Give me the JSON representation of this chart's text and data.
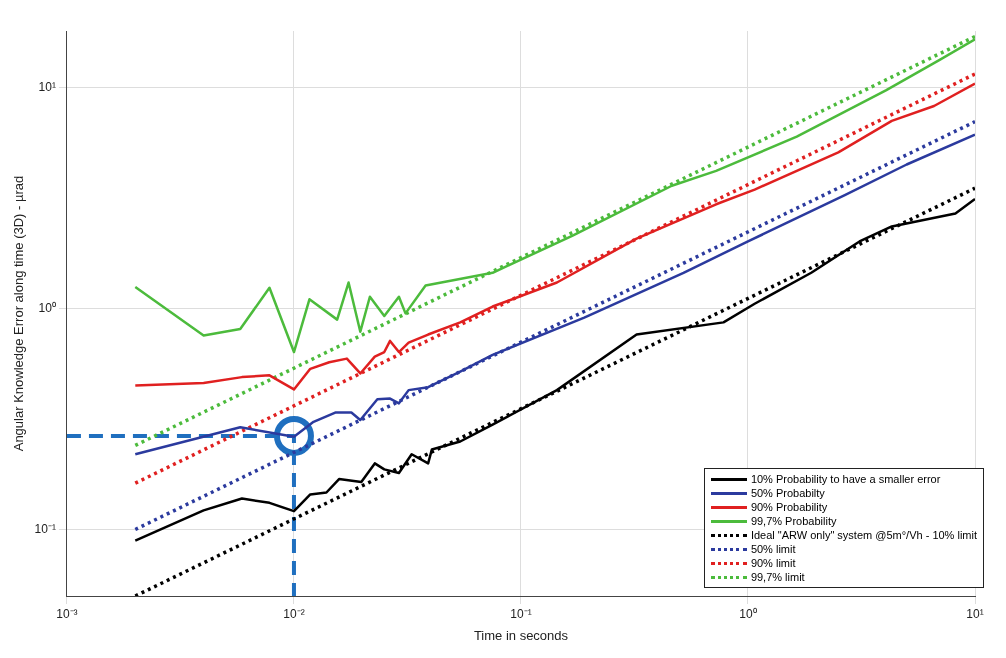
{
  "chart_data": {
    "type": "line",
    "xlabel": "Time in seconds",
    "ylabel": "Angular Knowledge Error along time (3D) - µrad",
    "log": "xy",
    "grid": true,
    "legend": "bottom right",
    "marker": "none",
    "xlim": [
      0.001,
      10
    ],
    "xticks": [
      {
        "value": 0.001,
        "label": "10⁻³"
      },
      {
        "value": 0.01,
        "label": "10⁻²"
      },
      {
        "value": 0.1,
        "label": "10⁻¹"
      },
      {
        "value": 1,
        "label": "10⁰"
      },
      {
        "value": 10,
        "label": "10¹"
      }
    ],
    "ylim": [
      0.05,
      18
    ],
    "yticks": [
      {
        "value": 0.1,
        "label": "10⁻¹"
      },
      {
        "value": 1,
        "label": "10⁰"
      },
      {
        "value": 10,
        "label": "10¹"
      }
    ],
    "series": [
      {
        "name": "10% Probability to have a smaller error",
        "color": "#000000",
        "line_style": "solid",
        "x": [
          0.002,
          0.004,
          0.0059,
          0.0078,
          0.01,
          0.0118,
          0.0139,
          0.0158,
          0.0198,
          0.0227,
          0.025,
          0.029,
          0.033,
          0.039,
          0.0405,
          0.054,
          0.075,
          0.144,
          0.323,
          0.78,
          1.07,
          1.9,
          3.1,
          4.3,
          8.2,
          10
        ],
        "values": [
          0.089,
          0.122,
          0.138,
          0.132,
          0.121,
          0.144,
          0.147,
          0.169,
          0.164,
          0.199,
          0.187,
          0.18,
          0.219,
          0.199,
          0.23,
          0.25,
          0.298,
          0.427,
          0.762,
          0.865,
          1.05,
          1.45,
          2.01,
          2.35,
          2.69,
          3.13
        ]
      },
      {
        "name": "50% Probabilty",
        "color": "#2b3a9e",
        "line_style": "solid",
        "x": [
          0.002,
          0.0058,
          0.01,
          0.0122,
          0.0152,
          0.0179,
          0.0196,
          0.0233,
          0.0265,
          0.029,
          0.032,
          0.039,
          0.054,
          0.075,
          0.19,
          0.52,
          1.0,
          2.67,
          5.0,
          10
        ],
        "values": [
          0.219,
          0.29,
          0.263,
          0.307,
          0.338,
          0.338,
          0.313,
          0.388,
          0.391,
          0.372,
          0.427,
          0.44,
          0.518,
          0.616,
          0.908,
          1.45,
          2.01,
          3.26,
          4.48,
          6.11
        ]
      },
      {
        "name": "90% Probability",
        "color": "#e02020",
        "line_style": "solid",
        "x": [
          0.002,
          0.004,
          0.0059,
          0.0078,
          0.01,
          0.0118,
          0.0143,
          0.0171,
          0.0196,
          0.0227,
          0.025,
          0.0265,
          0.029,
          0.032,
          0.039,
          0.054,
          0.075,
          0.144,
          0.323,
          0.724,
          1.07,
          2.5,
          4.3,
          6.6,
          10
        ],
        "values": [
          0.448,
          0.46,
          0.489,
          0.498,
          0.43,
          0.533,
          0.571,
          0.593,
          0.508,
          0.605,
          0.635,
          0.713,
          0.635,
          0.7,
          0.762,
          0.865,
          1.02,
          1.31,
          2.07,
          2.96,
          3.45,
          5.08,
          7.06,
          8.24,
          10.4
        ]
      },
      {
        "name": "99,7% Probability",
        "color": "#4cbb3c",
        "line_style": "solid",
        "x": [
          0.002,
          0.004,
          0.0058,
          0.0078,
          0.01,
          0.0117,
          0.0155,
          0.0174,
          0.0196,
          0.0216,
          0.025,
          0.029,
          0.031,
          0.038,
          0.075,
          0.168,
          0.462,
          0.724,
          1.64,
          4.05,
          7.05,
          10
        ],
        "values": [
          1.25,
          0.755,
          0.808,
          1.24,
          0.635,
          1.1,
          0.89,
          1.31,
          0.785,
          1.13,
          0.925,
          1.13,
          0.95,
          1.27,
          1.45,
          2.13,
          3.59,
          4.19,
          5.99,
          9.7,
          13.4,
          16.5
        ]
      },
      {
        "name": "Ideal \"ARW only\" system @5m°/Vh - 10% limit",
        "color": "#000000",
        "line_style": "dotted",
        "x": [
          0.002,
          10
        ],
        "values": [
          0.05,
          3.5
        ]
      },
      {
        "name": "50% limit",
        "color": "#2b3a9e",
        "line_style": "dotted",
        "x": [
          0.002,
          10
        ],
        "values": [
          0.1,
          7.0
        ]
      },
      {
        "name": "90% limit",
        "color": "#e02020",
        "line_style": "dotted",
        "x": [
          0.002,
          10
        ],
        "values": [
          0.162,
          11.5
        ]
      },
      {
        "name": "99,7% limit",
        "color": "#4cbb3c",
        "line_style": "dotted",
        "x": [
          0.002,
          10
        ],
        "values": [
          0.24,
          17
        ]
      },
      {
        "color": "#1f6fbf",
        "line_style": "dashed",
        "x": [
          0.001,
          0.01,
          0.01
        ],
        "values": [
          0.265,
          0.265,
          0.05
        ]
      },
      {
        "type": "scatter",
        "marker": "circle",
        "color": "#1f6fbf",
        "x": [
          0.01
        ],
        "values": [
          0.265
        ]
      }
    ]
  }
}
